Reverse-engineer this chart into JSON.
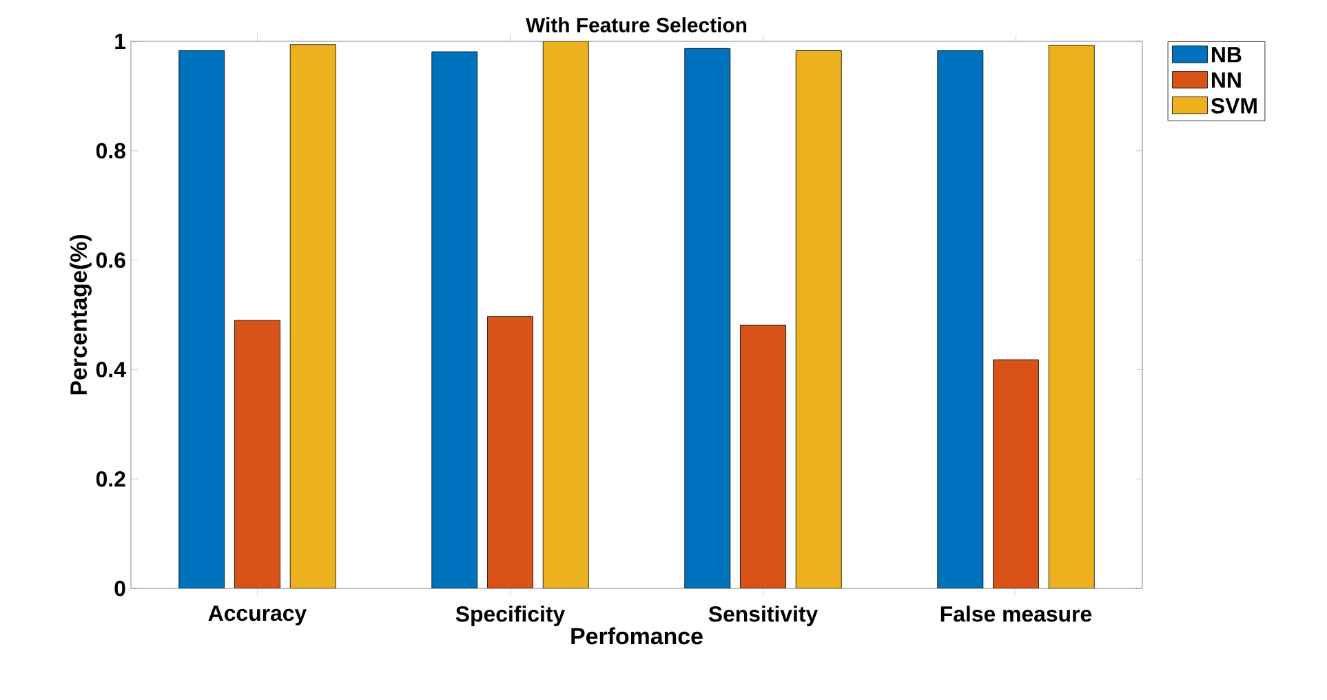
{
  "chart_data": {
    "type": "bar",
    "title": "With Feature Selection",
    "xlabel": "Perfomance",
    "ylabel": "Percentage(%)",
    "categories": [
      "Accuracy",
      "Specificity",
      "Sensitivity",
      "False measure"
    ],
    "series": [
      {
        "name": "NB",
        "color": "#0072bd",
        "values": [
          0.983,
          0.981,
          0.987,
          0.983
        ]
      },
      {
        "name": "NN",
        "color": "#d95319",
        "values": [
          0.49,
          0.497,
          0.481,
          0.418
        ]
      },
      {
        "name": "SVM",
        "color": "#edb120",
        "values": [
          0.994,
          1.0,
          0.983,
          0.993
        ]
      }
    ],
    "ylim": [
      0,
      1
    ],
    "yticks": [
      0,
      {
        "value": 0.2,
        "label": "0.2"
      },
      {
        "value": 0.4,
        "label": "0.4"
      },
      {
        "value": 0.6,
        "label": "0.6"
      },
      {
        "value": 0.8,
        "label": "0.8"
      },
      1
    ],
    "legend": "right"
  }
}
